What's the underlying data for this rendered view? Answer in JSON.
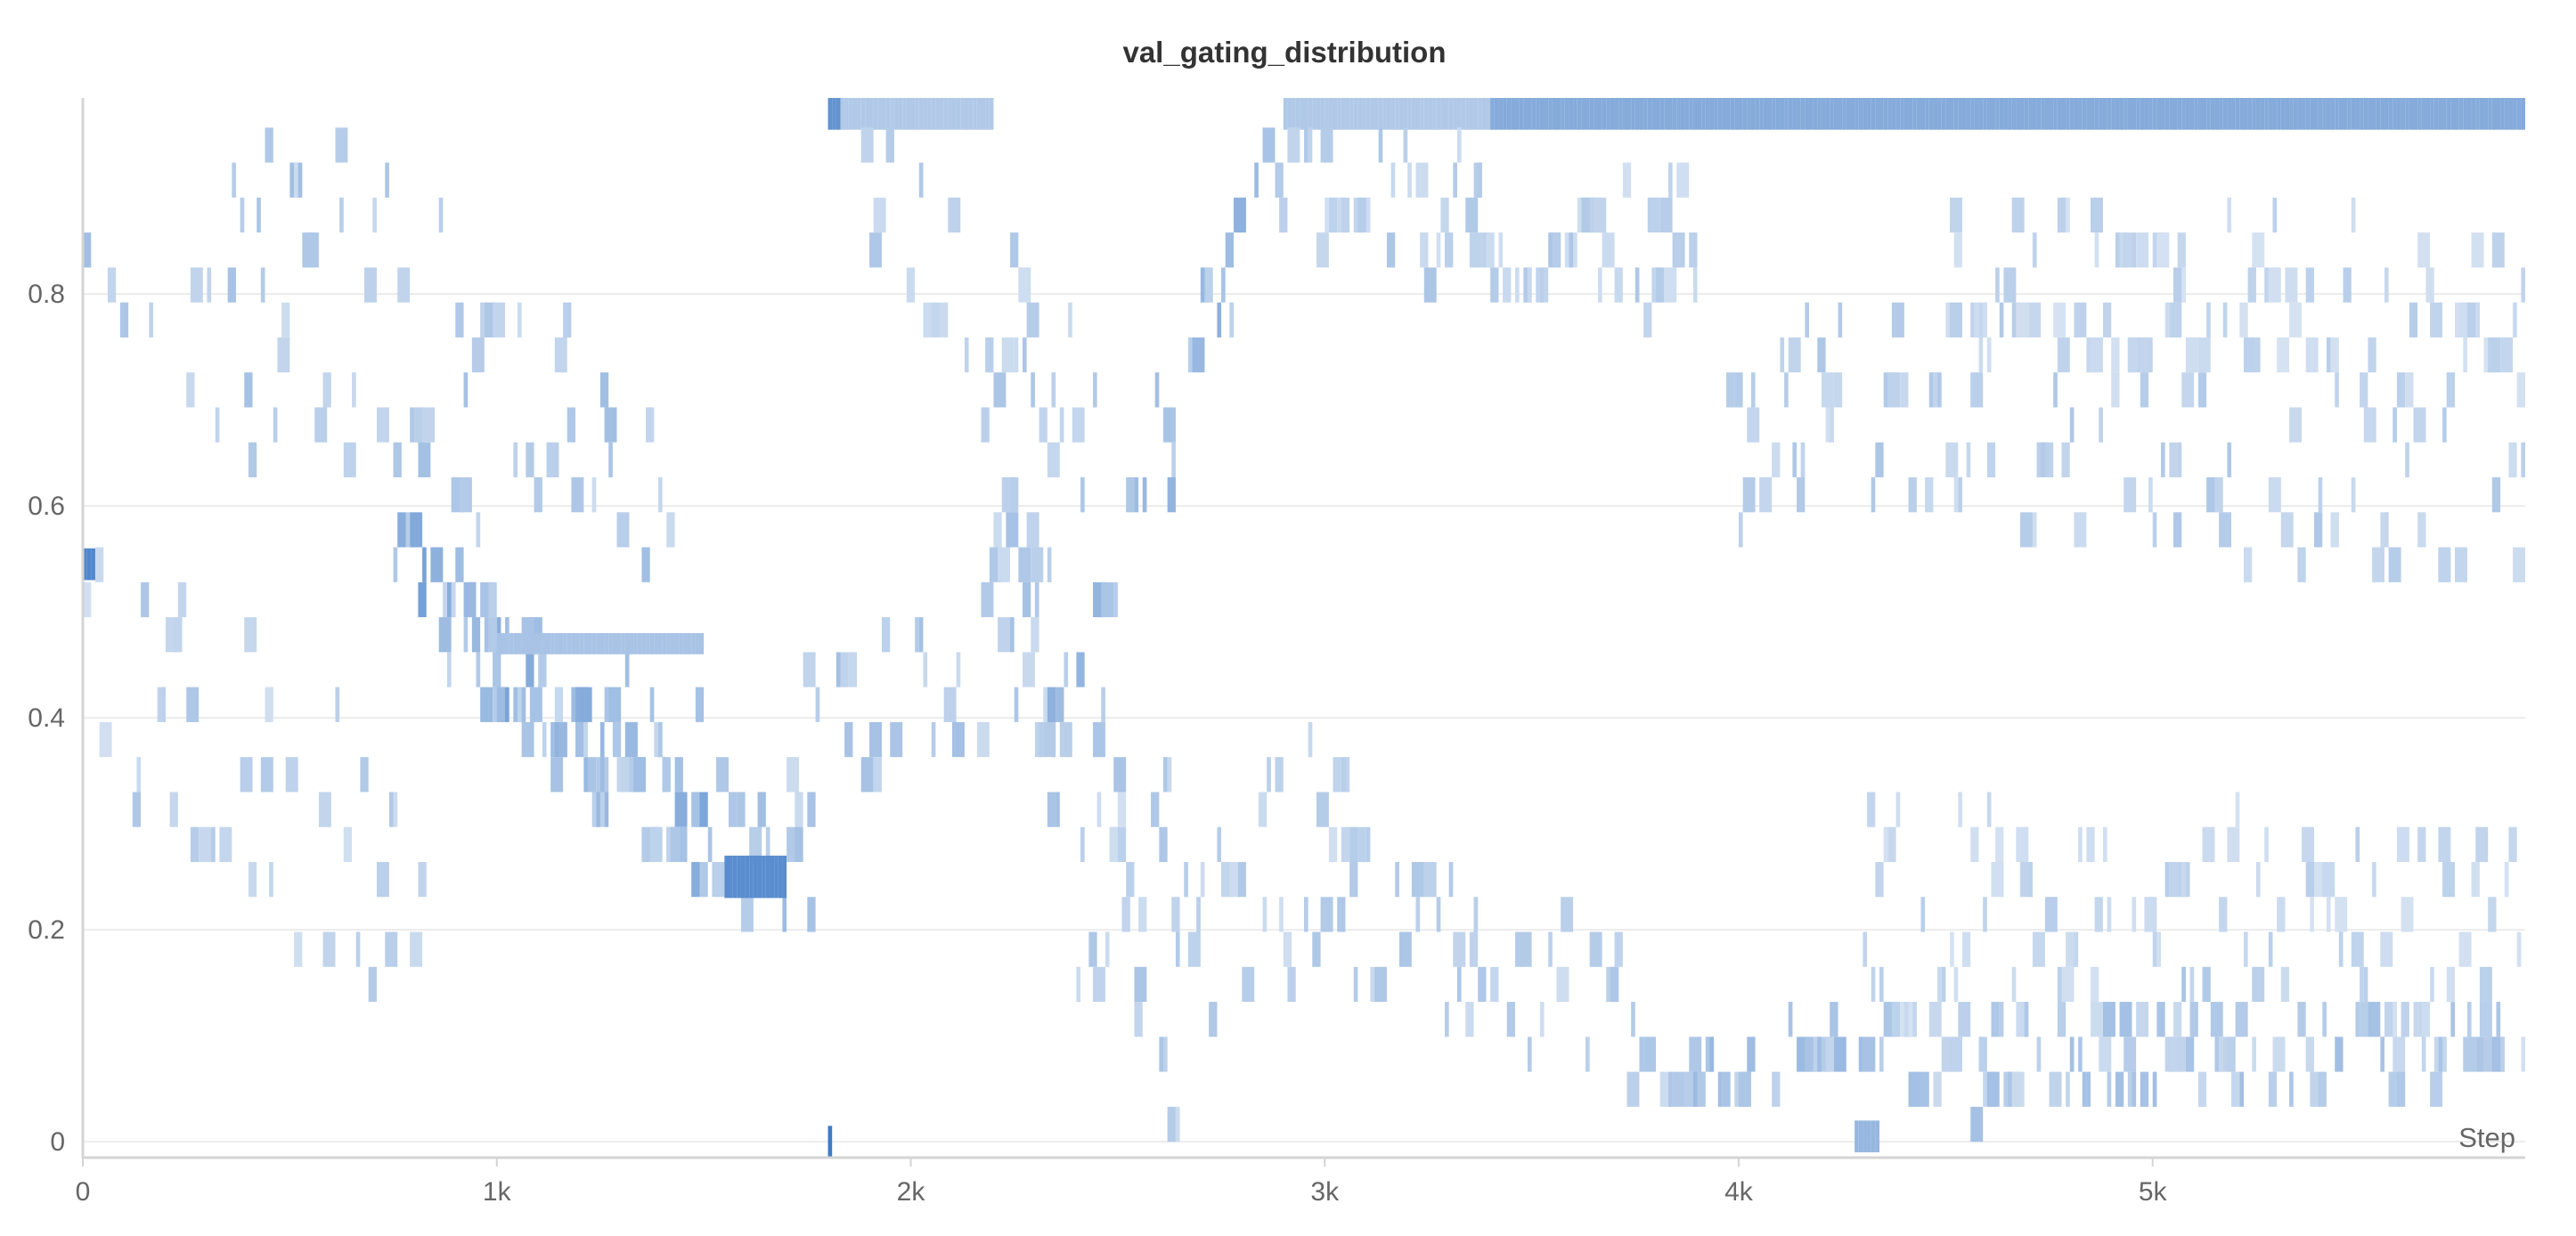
{
  "chart_data": {
    "type": "heatmap",
    "title": "val_gating_distribution",
    "xlabel": "Step",
    "ylabel": "",
    "xlim": [
      0,
      5900
    ],
    "ylim": [
      -0.015,
      0.985
    ],
    "bin_height": 0.033,
    "x_ticks": [
      {
        "value": 0,
        "label": "0"
      },
      {
        "value": 1000,
        "label": "1k"
      },
      {
        "value": 2000,
        "label": "2k"
      },
      {
        "value": 3000,
        "label": "3k"
      },
      {
        "value": 4000,
        "label": "4k"
      },
      {
        "value": 5000,
        "label": "5k"
      }
    ],
    "y_ticks": [
      {
        "value": 0,
        "label": "0"
      },
      {
        "value": 0.2,
        "label": "0.2"
      },
      {
        "value": 0.4,
        "label": "0.4"
      },
      {
        "value": 0.6,
        "label": "0.6"
      },
      {
        "value": 0.8,
        "label": "0.8"
      }
    ],
    "grid": true,
    "colors": {
      "low": "#eef3f9",
      "high": "#3f7bc7",
      "grid": "#ececec",
      "axis": "#d4d4d4"
    },
    "segments": [
      {
        "x0": 0,
        "x1": 30,
        "y0": 0.53,
        "y1": 0.56,
        "intensity": 0.9
      },
      {
        "x0": 0,
        "x1": 1500,
        "y0": 0.905,
        "y1": 0.52,
        "jitter": 0.17,
        "intensity": 0.35
      },
      {
        "x0": 0,
        "x1": 850,
        "y0": 0.44,
        "y1": 0.2,
        "jitter": 0.14,
        "intensity": 0.3
      },
      {
        "x0": 750,
        "x1": 1550,
        "y0": 0.52,
        "y1": 0.25,
        "jitter": 0.05,
        "intensity": 0.55
      },
      {
        "x0": 850,
        "x1": 1800,
        "y0": 0.47,
        "y1": 0.2,
        "jitter": 0.06,
        "intensity": 0.4
      },
      {
        "x0": 1000,
        "x1": 1500,
        "y0": 0.48,
        "y1": 0.46,
        "intensity": 0.4
      },
      {
        "x0": 1550,
        "x1": 1700,
        "y0": 0.27,
        "y1": 0.23,
        "intensity": 0.85
      },
      {
        "x0": 1700,
        "x1": 2350,
        "y0": 0.35,
        "y1": 0.45,
        "jitter": 0.08,
        "intensity": 0.35
      },
      {
        "x0": 1800,
        "x1": 1810,
        "y0": -0.015,
        "y1": 0.015,
        "intensity": 1.0
      },
      {
        "x0": 1800,
        "x1": 1830,
        "y0": 0.955,
        "y1": 0.985,
        "intensity": 0.8
      },
      {
        "x0": 1830,
        "x1": 2200,
        "y0": 0.955,
        "y1": 0.985,
        "intensity": 0.35
      },
      {
        "x0": 1820,
        "x1": 2450,
        "y0": 0.93,
        "y1": 0.65,
        "jitter": 0.08,
        "intensity": 0.3
      },
      {
        "x0": 2150,
        "x1": 2650,
        "y0": 0.65,
        "y1": 0.03,
        "jitter": 0.12,
        "intensity": 0.35
      },
      {
        "x0": 2300,
        "x1": 2900,
        "y0": 0.38,
        "y1": 0.92,
        "jitter": 0.06,
        "intensity": 0.45
      },
      {
        "x0": 2400,
        "x1": 3100,
        "y0": 0.2,
        "y1": 0.25,
        "jitter": 0.12,
        "intensity": 0.3
      },
      {
        "x0": 2900,
        "x1": 3400,
        "y0": 0.955,
        "y1": 0.985,
        "intensity": 0.35
      },
      {
        "x0": 2850,
        "x1": 3900,
        "y0": 0.88,
        "y1": 0.82,
        "jitter": 0.06,
        "intensity": 0.3
      },
      {
        "x0": 3000,
        "x1": 3900,
        "y0": 0.2,
        "y1": 0.08,
        "jitter": 0.07,
        "intensity": 0.3
      },
      {
        "x0": 3400,
        "x1": 5900,
        "y0": 0.955,
        "y1": 0.985,
        "intensity": 0.6
      },
      {
        "x0": 3950,
        "x1": 4250,
        "y0": 0.6,
        "y1": 0.7,
        "jitter": 0.08,
        "intensity": 0.3
      },
      {
        "x0": 3880,
        "x1": 4300,
        "y0": 0.04,
        "y1": 0.07,
        "jitter": 0.03,
        "intensity": 0.4
      },
      {
        "x0": 4280,
        "x1": 4340,
        "y0": -0.01,
        "y1": 0.02,
        "intensity": 0.5
      },
      {
        "x0": 4300,
        "x1": 5900,
        "y0": 0.06,
        "y1": 0.08,
        "jitter": 0.05,
        "intensity": 0.35
      },
      {
        "x0": 4300,
        "x1": 5900,
        "y0": 0.2,
        "y1": 0.18,
        "jitter": 0.1,
        "intensity": 0.25
      },
      {
        "x0": 4300,
        "x1": 5900,
        "y0": 0.68,
        "y1": 0.6,
        "jitter": 0.1,
        "intensity": 0.3
      },
      {
        "x0": 4500,
        "x1": 5900,
        "y0": 0.8,
        "y1": 0.76,
        "jitter": 0.08,
        "intensity": 0.25
      }
    ]
  }
}
